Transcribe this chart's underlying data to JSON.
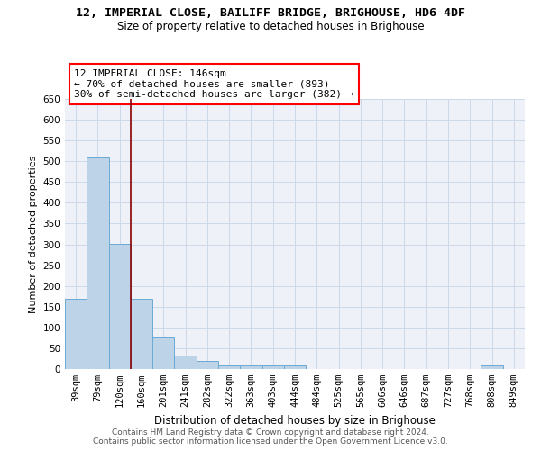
{
  "title": "12, IMPERIAL CLOSE, BAILIFF BRIDGE, BRIGHOUSE, HD6 4DF",
  "subtitle": "Size of property relative to detached houses in Brighouse",
  "xlabel": "Distribution of detached houses by size in Brighouse",
  "ylabel": "Number of detached properties",
  "categories": [
    "39sqm",
    "79sqm",
    "120sqm",
    "160sqm",
    "201sqm",
    "241sqm",
    "282sqm",
    "322sqm",
    "363sqm",
    "403sqm",
    "444sqm",
    "484sqm",
    "525sqm",
    "565sqm",
    "606sqm",
    "646sqm",
    "687sqm",
    "727sqm",
    "768sqm",
    "808sqm",
    "849sqm"
  ],
  "values": [
    168,
    510,
    302,
    168,
    78,
    32,
    20,
    8,
    8,
    8,
    8,
    0,
    0,
    0,
    0,
    0,
    0,
    0,
    0,
    8,
    0
  ],
  "bar_color": "#bdd4e8",
  "bar_edge_color": "#6aaad4",
  "grid_color": "#ccd8e8",
  "background_color": "#eef2f8",
  "vline_x": 2.5,
  "vline_color": "#8b0000",
  "annotation_text": "12 IMPERIAL CLOSE: 146sqm\n← 70% of detached houses are smaller (893)\n30% of semi-detached houses are larger (382) →",
  "annotation_box_color": "white",
  "annotation_box_edge_color": "red",
  "ylim": [
    0,
    650
  ],
  "yticks": [
    0,
    50,
    100,
    150,
    200,
    250,
    300,
    350,
    400,
    450,
    500,
    550,
    600,
    650
  ],
  "footer_text": "Contains HM Land Registry data © Crown copyright and database right 2024.\nContains public sector information licensed under the Open Government Licence v3.0.",
  "title_fontsize": 9.5,
  "subtitle_fontsize": 8.5,
  "ylabel_fontsize": 8,
  "xlabel_fontsize": 8.5,
  "tick_fontsize": 7.5,
  "annotation_fontsize": 8,
  "footer_fontsize": 6.5
}
